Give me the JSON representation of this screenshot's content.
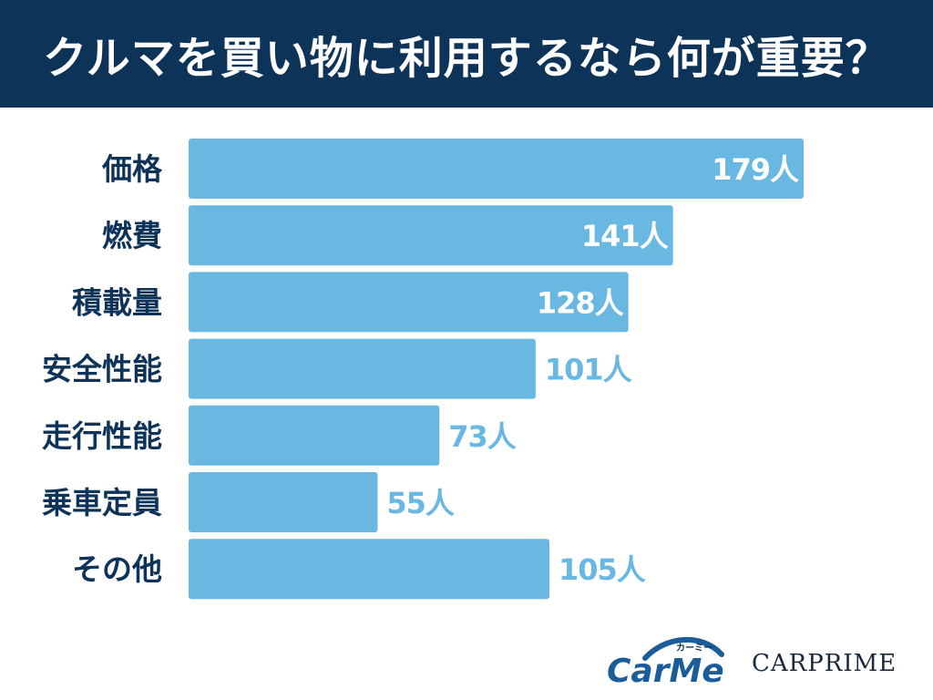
{
  "header": {
    "title": "クルマを買い物に利用するなら何が重要？"
  },
  "chart_data": {
    "type": "bar",
    "orientation": "horizontal",
    "categories": [
      "価格",
      "燃費",
      "積載量",
      "安全性能",
      "走行性能",
      "乗車定員",
      "その他"
    ],
    "values": [
      179,
      141,
      128,
      101,
      73,
      55,
      105
    ],
    "value_labels": [
      "179人",
      "141人",
      "128人",
      "101人",
      "73人",
      "55人",
      "105人"
    ],
    "unit": "人",
    "xlim": [
      0,
      179
    ],
    "grid": false,
    "legend": "none",
    "title": "",
    "xlabel": "",
    "ylabel": ""
  },
  "logos": {
    "carme_text": "CarMe",
    "carme_kana": "カーミー",
    "carprime_text": "CARPRIME"
  },
  "colors": {
    "header_bg": "#0e3358",
    "bar": "#69b8e2",
    "label_inside": "#ffffff",
    "label_outside": "#69b8e2",
    "category_text": "#0e3358"
  }
}
